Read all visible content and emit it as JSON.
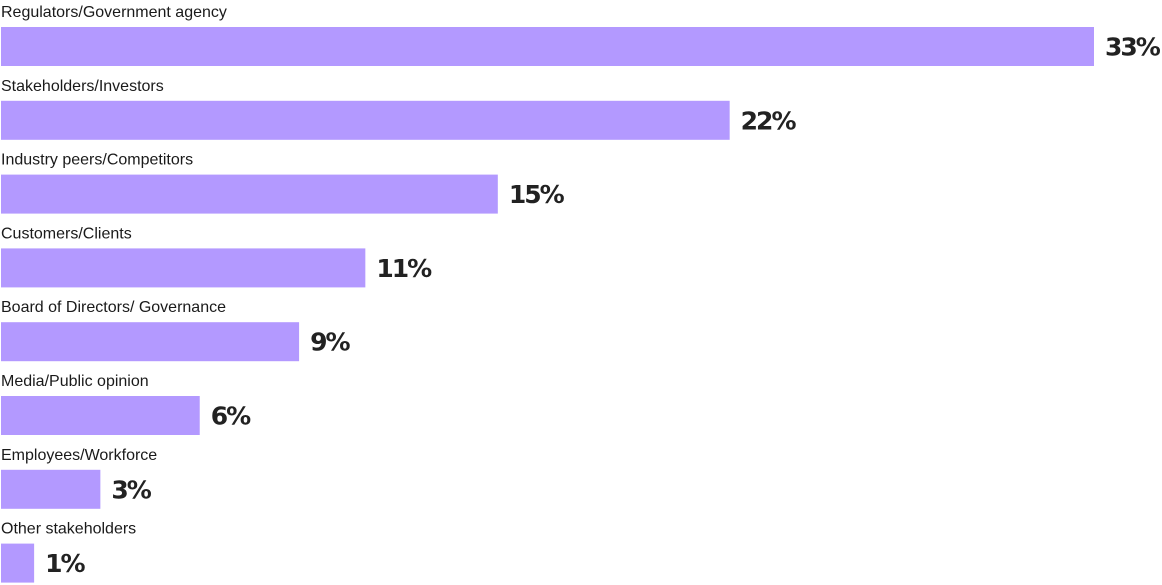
{
  "chart_data": {
    "type": "bar",
    "orientation": "horizontal",
    "categories": [
      "Regulators/Government agency",
      "Stakeholders/Investors",
      "Industry peers/Competitors",
      "Customers/Clients",
      "Board of Directors/ Governance",
      "Media/Public opinion",
      "Employees/Workforce",
      "Other stakeholders"
    ],
    "values": [
      33,
      22,
      15,
      11,
      9,
      6,
      3,
      1
    ],
    "value_labels": [
      "33%",
      "22%",
      "15%",
      "11%",
      "9%",
      "6%",
      "3%",
      "1%"
    ],
    "title": "",
    "xlabel": "",
    "ylabel": "",
    "xlim": [
      0,
      33
    ],
    "grid": false,
    "legend": "none",
    "bar_color": "#b399ff"
  }
}
